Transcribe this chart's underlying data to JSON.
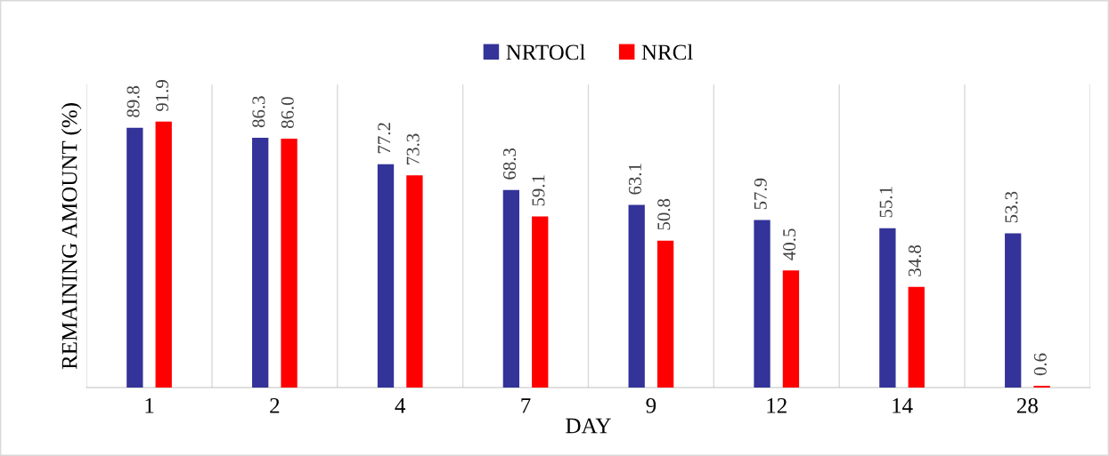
{
  "chart_data": {
    "type": "bar",
    "xlabel": "DAY",
    "ylabel": "REMAINING AMOUNT (%)",
    "categories": [
      "1",
      "2",
      "4",
      "7",
      "9",
      "12",
      "14",
      "28"
    ],
    "series": [
      {
        "name": "NRTOCl",
        "color": "#333399",
        "values": [
          89.8,
          86.3,
          77.2,
          68.3,
          63.1,
          57.9,
          55.1,
          53.3
        ],
        "value_labels": [
          "89.8",
          "86.3",
          "77.2",
          "68.3",
          "63.1",
          "57.9",
          "55.1",
          "53.3"
        ]
      },
      {
        "name": "NRCl",
        "color": "#ff0000",
        "values": [
          91.9,
          86.0,
          73.3,
          59.1,
          50.8,
          40.5,
          34.8,
          0.6
        ],
        "value_labels": [
          "91.9",
          "86.0",
          "73.3",
          "59.1",
          "50.8",
          "40.5",
          "34.8",
          "0.6"
        ]
      }
    ],
    "grid": "x",
    "legend": "top",
    "tick_labels": "x"
  }
}
